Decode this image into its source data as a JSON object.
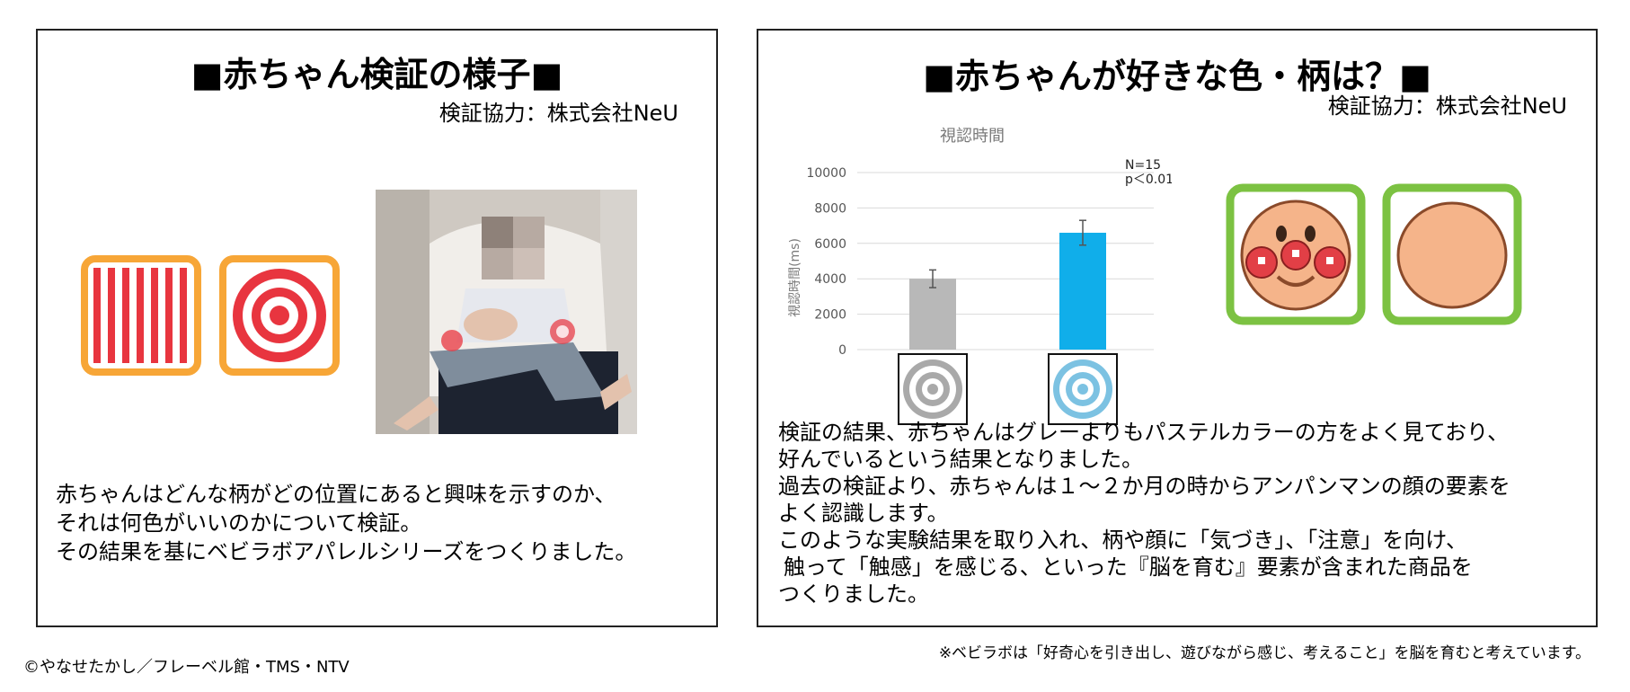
{
  "left_panel": {
    "title": "■赤ちゃん検証の様子■",
    "credit": "検証協力：株式会社NeU",
    "description": [
      "赤ちゃんはどんな柄がどの位置にあると興味を示すのか、",
      "それは何色がいいのかについて検証。",
      "その結果を基にベビラボアパレルシリーズをつくりました。"
    ],
    "pattern_cards": [
      {
        "name": "stripes",
        "icon": "vertical-stripes-pattern",
        "frame": "#f7a637",
        "color": "#e8353f"
      },
      {
        "name": "bullseye",
        "icon": "bullseye-pattern",
        "frame": "#f7a637",
        "color": "#e8353f"
      }
    ]
  },
  "right_panel": {
    "title": "■赤ちゃんが好きな色・柄は？■",
    "credit": "検証協力：株式会社NeU",
    "description": [
      "検証の結果、赤ちゃんはグレーよりもパステルカラーの方をよく見ており、",
      "好んでいるという結果となりました。",
      "過去の検証より、赤ちゃんは１～２か月の時からアンパンマンの顔の要素を",
      "よく認識します。",
      "このような実験結果を取り入れ、柄や顔に「気づき」、「注意」を向け、",
      "触って「触感」を感じる、といった『脳を育む』要素が含まれた商品を",
      "つくりました。"
    ],
    "face_cards": [
      {
        "name": "anpanman-face",
        "icon": "anpanman-face",
        "frame": "#7cc242",
        "face": "#f5b48a"
      },
      {
        "name": "plain-face",
        "icon": "plain-circle",
        "frame": "#7cc242",
        "face": "#f5b48a"
      }
    ]
  },
  "chart_data": {
    "type": "bar",
    "title": "視認時間",
    "ylabel": "視認時間(ms)",
    "xlabel": "",
    "ylim": [
      0,
      10000
    ],
    "yticks": [
      0,
      2000,
      4000,
      6000,
      8000,
      10000
    ],
    "grid": true,
    "categories": [
      "gray-bullseye",
      "blue-bullseye"
    ],
    "values": [
      4000,
      6600
    ],
    "errors": [
      500,
      700
    ],
    "colors": [
      "#b8b8b8",
      "#10aeea"
    ],
    "annotation": [
      "N=15",
      "p＜0.01"
    ]
  },
  "footer": {
    "copyright": "©やなせたかし／フレーベル館・TMS・NTV",
    "note": "※ベビラボは「好奇心を引き出し、遊びながら感じ、考えること」を脳を育むと考えています。"
  }
}
